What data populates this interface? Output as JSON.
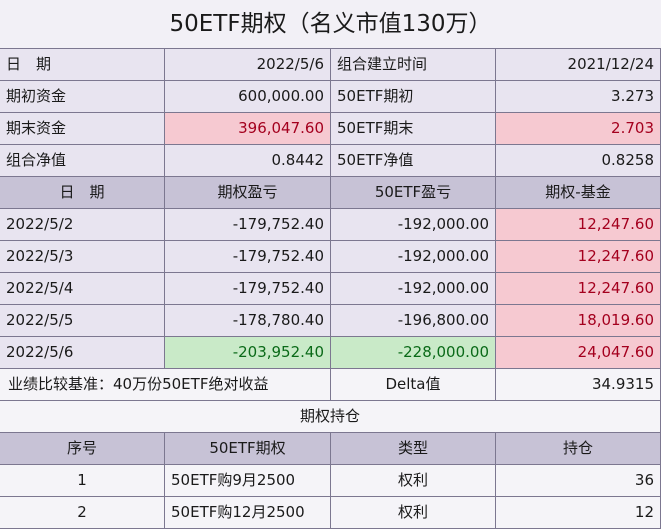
{
  "title": "50ETF期权（名义市值130万）",
  "summary": {
    "date_label": "日　期",
    "date_value": "2022/5/6",
    "build_time_label": "组合建立时间",
    "build_time_value": "2021/12/24",
    "initial_funds_label": "期初资金",
    "initial_funds_value": "600,000.00",
    "etf_initial_label": "50ETF期初",
    "etf_initial_value": "3.273",
    "final_funds_label": "期末资金",
    "final_funds_value": "396,047.60",
    "etf_final_label": "50ETF期末",
    "etf_final_value": "2.703",
    "portfolio_nav_label": "组合净值",
    "portfolio_nav_value": "0.8442",
    "etf_nav_label": "50ETF净值",
    "etf_nav_value": "0.8258"
  },
  "daily": {
    "headers": [
      "日　期",
      "期权盈亏",
      "50ETF盈亏",
      "期权-基金"
    ],
    "rows": [
      [
        "2022/5/2",
        "-179,752.40",
        "-192,000.00",
        "12,247.60"
      ],
      [
        "2022/5/3",
        "-179,752.40",
        "-192,000.00",
        "12,247.60"
      ],
      [
        "2022/5/4",
        "-179,752.40",
        "-192,000.00",
        "12,247.60"
      ],
      [
        "2022/5/5",
        "-178,780.40",
        "-196,800.00",
        "18,019.60"
      ],
      [
        "2022/5/6",
        "-203,952.40",
        "-228,000.00",
        "24,047.60"
      ]
    ]
  },
  "benchmark": {
    "label": "业绩比较基准：40万份50ETF绝对收益",
    "delta_label": "Delta值",
    "delta_value": "34.9315"
  },
  "holdings": {
    "title": "期权持仓",
    "headers": [
      "序号",
      "50ETF期权",
      "类型",
      "持仓"
    ],
    "rows": [
      [
        "1",
        "50ETF购9月2500",
        "权利",
        "36"
      ],
      [
        "2",
        "50ETF购12月2500",
        "权利",
        "12"
      ]
    ]
  },
  "colors": {
    "negative_highlight": "#f6c9d1",
    "positive_highlight": "#c9eac8",
    "header_bg": "#c7c2d6"
  }
}
